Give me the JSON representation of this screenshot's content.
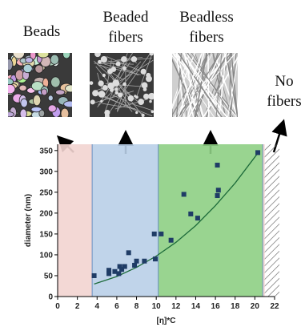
{
  "chart_data": {
    "type": "scatter",
    "xlabel": "[η]*C",
    "ylabel": "diameter (nm)",
    "xlim": [
      0,
      22
    ],
    "ylim": [
      0,
      365
    ],
    "xticks": [
      0,
      2,
      4,
      6,
      8,
      10,
      12,
      14,
      16,
      18,
      20,
      22
    ],
    "yticks": [
      0,
      50,
      100,
      150,
      200,
      250,
      300,
      350
    ],
    "regions": [
      {
        "from": 0,
        "to": 3.5,
        "color": "#f2d4d0"
      },
      {
        "from": 3.5,
        "to": 10.2,
        "color": "#b9cfe8"
      },
      {
        "from": 10.2,
        "to": 20.8,
        "color": "#8ecf84"
      },
      {
        "from": 20.8,
        "to": 21,
        "color": "#f2d4d0"
      }
    ],
    "series": [
      {
        "color": "#1f3c66",
        "x": [
          3.7,
          5.2,
          5.2,
          5.8,
          6.2,
          6.3,
          6.5,
          6.8,
          7.2,
          7.8,
          8,
          8.8,
          9.8,
          9.9,
          10.5,
          11.5,
          12.8,
          13.5,
          14.2,
          16.2,
          16.2,
          16.3,
          20.3
        ],
        "values": [
          50,
          55,
          63,
          60,
          55,
          72,
          65,
          72,
          105,
          75,
          85,
          85,
          150,
          90,
          150,
          135,
          245,
          198,
          188,
          315,
          242,
          255,
          345
        ]
      },
      {
        "color": "#1d6b3a",
        "x": [
          3.7,
          6,
          8,
          10,
          12,
          14,
          16,
          18,
          20.5
        ],
        "values": [
          30,
          48,
          70,
          97,
          130,
          170,
          218,
          272,
          350
        ]
      }
    ],
    "annotations": [
      {
        "text": [
          "Beads"
        ]
      },
      {
        "text": [
          "Beaded",
          "fibers"
        ]
      },
      {
        "text": [
          "Beadless",
          "fibers"
        ]
      },
      {
        "text": [
          "No",
          "fibers"
        ]
      }
    ]
  }
}
